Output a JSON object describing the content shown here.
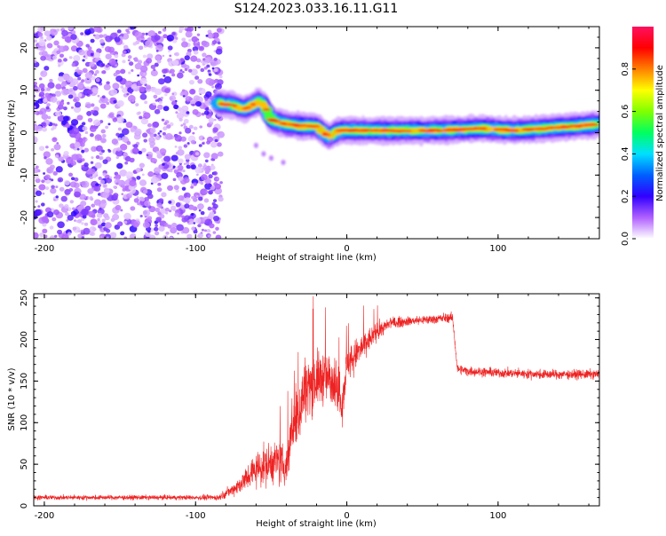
{
  "figure": {
    "title": "S124.2023.033.16.11.G11"
  },
  "chart_data": [
    {
      "type": "heatmap",
      "xlabel": "Height of straight line (km)",
      "ylabel": "Frequency (Hz)",
      "xlim": [
        -207,
        167
      ],
      "ylim": [
        -25,
        25
      ],
      "xticks": [
        -200,
        -100,
        0,
        100
      ],
      "yticks": [
        -20,
        -10,
        0,
        10,
        20
      ],
      "colorbar": {
        "label": "Normalized spectral amplitude",
        "range": [
          0,
          1
        ],
        "ticks": [
          0.0,
          0.2,
          0.4,
          0.6,
          0.8
        ],
        "colors": [
          "#ffffff",
          "#b060ff",
          "#3000ff",
          "#0060ff",
          "#00e0ff",
          "#00ff60",
          "#80ff00",
          "#ffff00",
          "#ff8000",
          "#ff0000",
          "#ff1060"
        ]
      },
      "ridge": [
        {
          "x": -85,
          "f": 7.0
        },
        {
          "x": -75,
          "f": 6.5
        },
        {
          "x": -68,
          "f": 5.5
        },
        {
          "x": -62,
          "f": 6.5
        },
        {
          "x": -58,
          "f": 7.5
        },
        {
          "x": -54,
          "f": 6.0
        },
        {
          "x": -50,
          "f": 3.0
        },
        {
          "x": -45,
          "f": 2.5
        },
        {
          "x": -40,
          "f": 2.0
        },
        {
          "x": -30,
          "f": 1.5
        },
        {
          "x": -20,
          "f": 1.5
        },
        {
          "x": -12,
          "f": -1.0
        },
        {
          "x": -5,
          "f": 0.5
        },
        {
          "x": 0,
          "f": 0.5
        },
        {
          "x": 20,
          "f": 0.5
        },
        {
          "x": 60,
          "f": 0.5
        },
        {
          "x": 90,
          "f": 1.0
        },
        {
          "x": 110,
          "f": 0.5
        },
        {
          "x": 130,
          "f": 1.0
        },
        {
          "x": 150,
          "f": 1.5
        },
        {
          "x": 167,
          "f": 2.0
        }
      ],
      "noise_region": {
        "x_range": [
          -207,
          -83
        ],
        "f_range": [
          -25,
          25
        ]
      }
    },
    {
      "type": "line",
      "xlabel": "Height of straight line (km)",
      "ylabel": "SNR (10 * v/v)",
      "xlim": [
        -207,
        167
      ],
      "ylim": [
        0,
        255
      ],
      "xticks": [
        -200,
        -100,
        0,
        100
      ],
      "yticks": [
        0,
        50,
        100,
        150,
        200,
        250
      ],
      "line_color": "#ee2222",
      "series": [
        {
          "x": [
            -207,
            -150,
            -100,
            -85,
            -75,
            -68,
            -60,
            -52,
            -46,
            -40,
            -36,
            -32,
            -28,
            -22,
            -15,
            -8,
            -3,
            0,
            10,
            20,
            30,
            40,
            55,
            65,
            70,
            72,
            80,
            100,
            130,
            167
          ],
          "mean": [
            10,
            10,
            10,
            10,
            20,
            30,
            45,
            50,
            55,
            45,
            100,
            110,
            140,
            150,
            155,
            150,
            125,
            170,
            190,
            210,
            220,
            222,
            224,
            226,
            226,
            165,
            162,
            160,
            158,
            158
          ],
          "spread": [
            4,
            4,
            4,
            5,
            10,
            20,
            30,
            35,
            35,
            30,
            55,
            60,
            55,
            50,
            45,
            40,
            40,
            30,
            25,
            15,
            10,
            8,
            8,
            8,
            8,
            8,
            8,
            8,
            8,
            8
          ]
        }
      ]
    }
  ]
}
